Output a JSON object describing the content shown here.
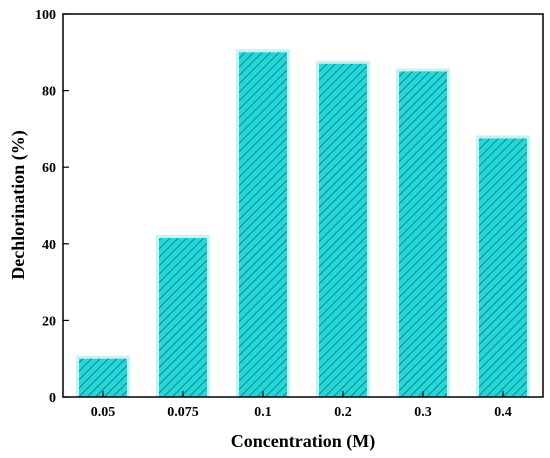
{
  "chart_data": {
    "type": "bar",
    "title": "",
    "xlabel": "Concentration (M)",
    "ylabel": "Dechlorination (%)",
    "categories": [
      "0.05",
      "0.075",
      "0.1",
      "0.2",
      "0.3",
      "0.4"
    ],
    "values": [
      10,
      41.5,
      90,
      87,
      85,
      67.5
    ],
    "ylim": [
      0,
      100
    ],
    "yticks": [
      0,
      20,
      40,
      60,
      80,
      100
    ],
    "grid": false,
    "legend": "none",
    "bar_color": "#1fdad8",
    "hatch": "diagonal",
    "hatch_color": "#2a4a6a",
    "glow_color": "#c6f2f2"
  }
}
